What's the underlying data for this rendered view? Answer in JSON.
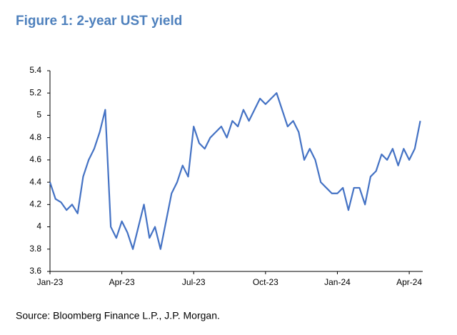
{
  "chart_data": {
    "type": "line",
    "title": "Figure 1: 2-year UST yield",
    "source": "Source: Bloomberg Finance L.P., J.P. Morgan.",
    "categories": [
      "Jan-23",
      null,
      null,
      null,
      null,
      null,
      null,
      null,
      null,
      null,
      null,
      null,
      null,
      "Apr-23",
      null,
      null,
      null,
      null,
      null,
      null,
      null,
      null,
      null,
      null,
      null,
      null,
      "Jul-23",
      null,
      null,
      null,
      null,
      null,
      null,
      null,
      null,
      null,
      null,
      null,
      null,
      "Oct-23",
      null,
      null,
      null,
      null,
      null,
      null,
      null,
      null,
      null,
      null,
      null,
      null,
      "Jan-24",
      null,
      null,
      null,
      null,
      null,
      null,
      null,
      null,
      null,
      null,
      null,
      null,
      "Apr-24",
      null,
      null
    ],
    "series": [
      {
        "name": "2-year UST yield",
        "color": "#4472c4",
        "values": [
          4.4,
          4.25,
          4.22,
          4.15,
          4.2,
          4.12,
          4.45,
          4.6,
          4.7,
          4.85,
          5.05,
          4.0,
          3.9,
          4.05,
          3.95,
          3.8,
          4.0,
          4.2,
          3.9,
          4.0,
          3.8,
          4.05,
          4.3,
          4.4,
          4.55,
          4.45,
          4.9,
          4.75,
          4.7,
          4.8,
          4.85,
          4.9,
          4.8,
          4.95,
          4.9,
          5.05,
          4.95,
          5.05,
          5.15,
          5.1,
          5.15,
          5.2,
          5.05,
          4.9,
          4.95,
          4.85,
          4.6,
          4.7,
          4.6,
          4.4,
          4.35,
          4.3,
          4.3,
          4.35,
          4.15,
          4.35,
          4.35,
          4.2,
          4.45,
          4.5,
          4.65,
          4.6,
          4.7,
          4.55,
          4.7,
          4.6,
          4.7,
          4.95
        ]
      }
    ],
    "ylim": [
      3.6,
      5.4
    ],
    "yticks": [
      3.6,
      3.8,
      4,
      4.2,
      4.4,
      4.6,
      4.8,
      5,
      5.2,
      5.4
    ],
    "grid": false
  }
}
